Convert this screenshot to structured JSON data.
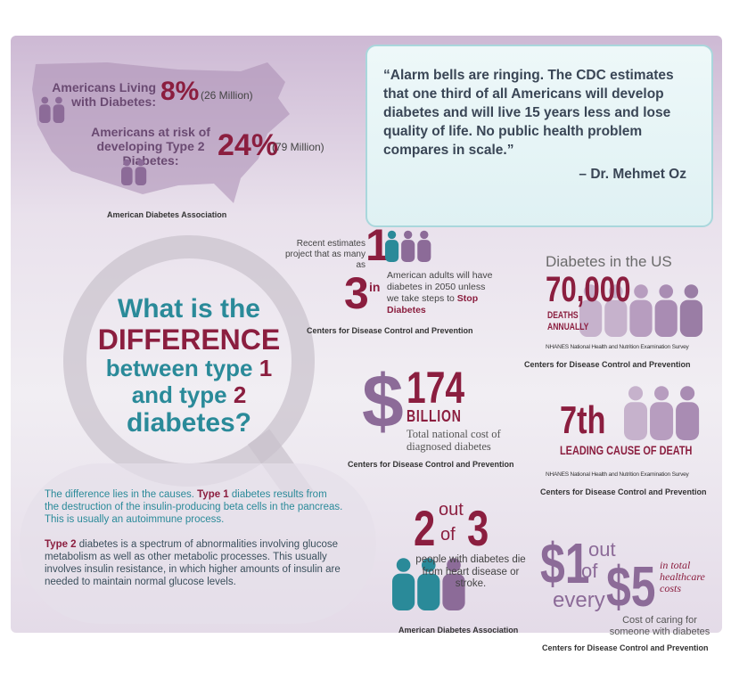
{
  "stats_top": {
    "living_label": "Americans Living with Diabetes:",
    "living_pct": "8%",
    "living_count": "(26 Million)",
    "risk_label": "Americans at risk of developing Type 2 Diabetes:",
    "risk_pct": "24%",
    "risk_count": "(79 Million)",
    "source": "American Diabetes Association"
  },
  "quote": {
    "text": "“Alarm bells are ringing. The CDC estimates that one third of all Americans will develop diabetes and will live 15 years less and lose quality of life. No public health problem compares in scale.”",
    "author": "– Dr. Mehmet Oz"
  },
  "one_in_three": {
    "lead": "Recent estimates project that as many as",
    "one": "1",
    "in": "in",
    "three": "3",
    "text": "American adults will have diabetes in 2050 unless we take steps to",
    "highlight": "Stop Diabetes",
    "source": "Centers for Disease Control and Prevention"
  },
  "deaths": {
    "heading": "Diabetes in the US",
    "number": "70,000",
    "label": "DEATHS ANNUALLY",
    "survey": "NHANES National Health and Nutrition Examination Survey",
    "source": "Centers for Disease Control and Prevention"
  },
  "question": {
    "line1": "What is the",
    "line2": "DIFFERENCE",
    "line3": "between type",
    "num1": "1",
    "line4": "and type",
    "num2": "2",
    "line5": "diabetes?"
  },
  "cost": {
    "dollar": "$",
    "number": "174",
    "unit": "BILLION",
    "text": "Total national cost of diagnosed diabetes",
    "source": "Centers for Disease Control and Prevention"
  },
  "rank": {
    "number": "7th",
    "label": "LEADING CAUSE OF DEATH",
    "survey": "NHANES National Health and Nutrition Examination Survey",
    "source": "Centers for Disease Control and Prevention"
  },
  "explanation": {
    "p1_lead": "The difference lies in the causes.",
    "p1_type": "Type 1",
    "p1_text": "diabetes results from the destruction of the insulin-producing beta cells in the pancreas. This is usually an autoimmune process.",
    "p2_type": "Type 2",
    "p2_text": "diabetes is a spectrum of abnormalities involving glucose metabolism as well as other metabolic processes. This usually involves insulin resistance, in which higher amounts of insulin are needed to maintain normal glucose levels."
  },
  "heart": {
    "two": "2",
    "out": "out",
    "of": "of",
    "three": "3",
    "text": "people with diabetes die from heart disease or stroke.",
    "source": "American Diabetes Association"
  },
  "healthcare": {
    "one": "$1",
    "out": "out",
    "of": "of",
    "every": "every",
    "five": "$5",
    "side": "in total healthcare costs",
    "text": "Cost of caring for someone with diabetes",
    "source": "Centers for Disease Control and Prevention"
  }
}
